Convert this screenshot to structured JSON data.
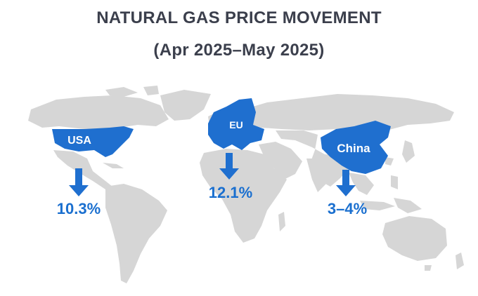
{
  "title": "NATURAL GAS PRICE MOVEMENT",
  "subtitle": "(Apr 2025–May 2025)",
  "colors": {
    "land": "#d6d6d6",
    "highlight": "#1f6fcf",
    "arrow": "#1f6fcf",
    "text_dark": "#3b3f4c",
    "value_text": "#1a6fcf"
  },
  "regions": [
    {
      "name": "USA",
      "change": "10.3%",
      "direction": "down"
    },
    {
      "name": "EU",
      "change": "12.1%",
      "direction": "down"
    },
    {
      "name": "China",
      "change": "3–4%",
      "direction": "down"
    }
  ]
}
